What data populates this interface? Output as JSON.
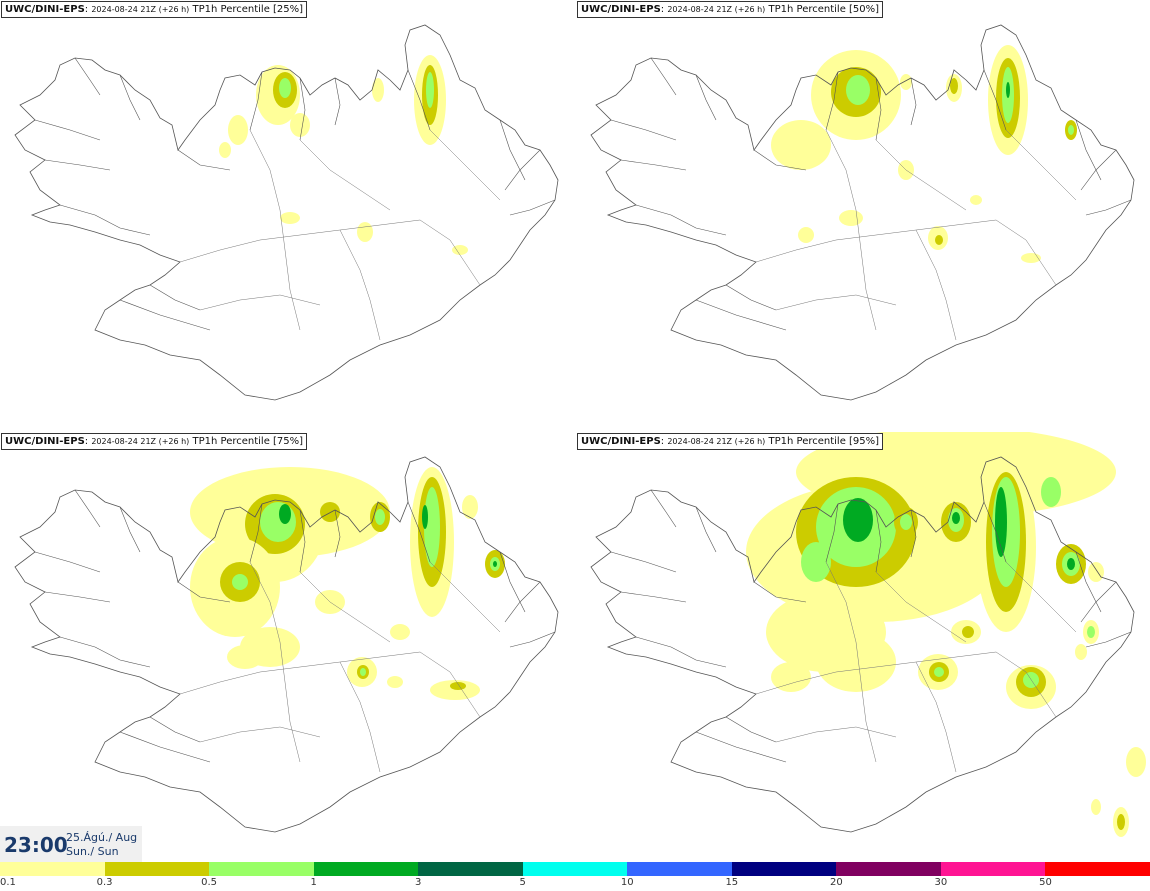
{
  "panels": [
    {
      "model": "UWC/DINI-EPS",
      "run": "2024-08-24 21Z (+26 h)",
      "field": "TP1h Percentile [25%]",
      "percentile": 25
    },
    {
      "model": "UWC/DINI-EPS",
      "run": "2024-08-24 21Z (+26 h)",
      "field": "TP1h Percentile [50%]",
      "percentile": 50
    },
    {
      "model": "UWC/DINI-EPS",
      "run": "2024-08-24 21Z (+26 h)",
      "field": "TP1h Percentile [75%]",
      "percentile": 75
    },
    {
      "model": "UWC/DINI-EPS",
      "run": "2024-08-24 21Z (+26 h)",
      "field": "TP1h Percentile [95%]",
      "percentile": 95
    }
  ],
  "valid_time": {
    "time": "23:00",
    "date_line1": "25.Ágú./ Aug",
    "date_line2": "Sun./ Sun"
  },
  "legend": {
    "labels": [
      "0.1",
      "0.3",
      "0.5",
      "1",
      "3",
      "5",
      "10",
      "15",
      "20",
      "30",
      "50"
    ],
    "colors": [
      "#ffff99",
      "#cccc00",
      "#99ff66",
      "#00aa22",
      "#006644",
      "#00ffee",
      "#3366ff",
      "#000080",
      "#800060",
      "#ff1493",
      "#ff0000"
    ]
  },
  "colors": {
    "light_yellow": "#ffff99",
    "olive": "#cccc00",
    "light_green": "#99ff66",
    "green": "#00aa22",
    "coast": "#555555"
  }
}
